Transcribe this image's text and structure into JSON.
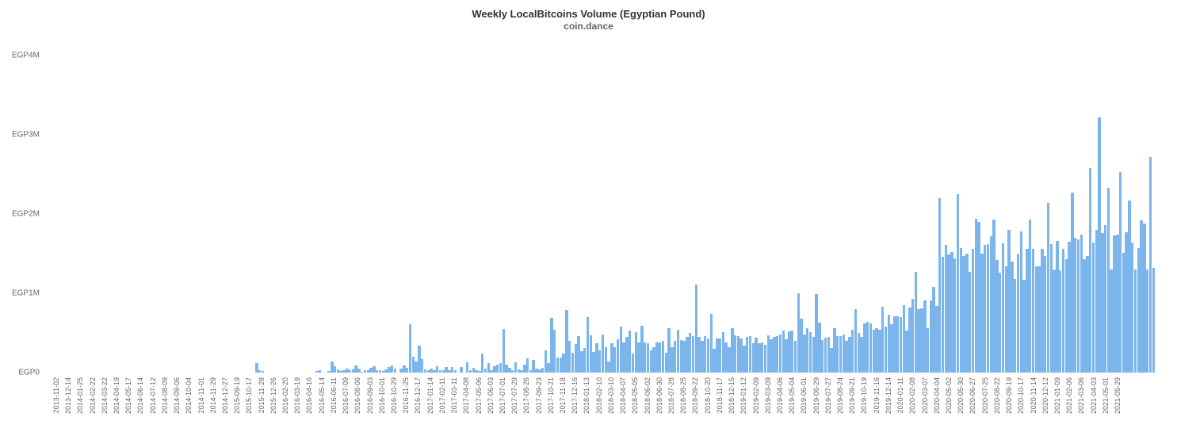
{
  "chart": {
    "type": "bar",
    "title": "Weekly LocalBitcoins Volume (Egyptian Pound)",
    "subtitle": "coin.dance",
    "title_fontsize": 13,
    "subtitle_fontsize": 12,
    "title_color": "#333333",
    "subtitle_color": "#666666",
    "background_color": "#ffffff",
    "bar_color": "#7CB5EC",
    "axis_label_color": "#666666",
    "axis_label_fontsize": 10,
    "x_tick_fontsize": 9,
    "ylim": [
      0,
      4200000
    ],
    "y_ticks": [
      {
        "value": 0,
        "label": "EGP0"
      },
      {
        "value": 1000000,
        "label": "EGP1M"
      },
      {
        "value": 2000000,
        "label": "EGP2M"
      },
      {
        "value": 3000000,
        "label": "EGP3M"
      },
      {
        "value": 4000000,
        "label": "EGP4M"
      }
    ],
    "x_tick_labels": [
      "2013-11-02",
      "2013-12-14",
      "2014-01-25",
      "2014-02-22",
      "2014-03-22",
      "2014-04-19",
      "2014-05-17",
      "2014-06-14",
      "2014-07-12",
      "2014-08-09",
      "2014-09-06",
      "2014-10-04",
      "2014-11-01",
      "2014-11-29",
      "2014-12-27",
      "2015-09-19",
      "2015-10-17",
      "2015-11-28",
      "2015-12-26",
      "2016-02-20",
      "2016-03-19",
      "2016-04-16",
      "2016-05-14",
      "2016-06-11",
      "2016-07-09",
      "2016-08-06",
      "2016-09-03",
      "2016-10-01",
      "2016-10-29",
      "2016-11-25",
      "2016-12-17",
      "2017-01-14",
      "2017-02-11",
      "2017-03-11",
      "2017-04-08",
      "2017-05-06",
      "2017-06-03",
      "2017-07-01",
      "2017-07-29",
      "2017-08-26",
      "2017-09-23",
      "2017-10-21",
      "2017-11-18",
      "2017-12-16",
      "2018-01-13",
      "2018-02-10",
      "2018-03-10",
      "2018-04-07",
      "2018-05-05",
      "2018-06-02",
      "2018-06-30",
      "2018-07-28",
      "2018-08-25",
      "2018-09-22",
      "2018-10-20",
      "2018-11-17",
      "2018-12-15",
      "2019-01-12",
      "2019-02-09",
      "2019-03-09",
      "2019-04-06",
      "2019-05-04",
      "2019-06-01",
      "2019-06-29",
      "2019-07-27",
      "2019-08-24",
      "2019-09-21",
      "2019-10-19",
      "2019-11-16",
      "2019-12-14",
      "2020-01-11",
      "2020-02-08",
      "2020-03-07",
      "2020-04-04",
      "2020-05-02",
      "2020-05-30",
      "2020-06-27",
      "2020-07-25",
      "2020-08-22",
      "2020-09-19",
      "2020-10-17",
      "2020-11-14",
      "2020-12-12",
      "2021-01-09",
      "2021-02-06",
      "2021-03-06",
      "2021-04-03",
      "2021-05-01",
      "2021-05-29"
    ],
    "x_tick_interval": 4,
    "values": [
      0,
      0,
      0,
      0,
      0,
      0,
      0,
      0,
      0,
      0,
      0,
      0,
      0,
      0,
      0,
      0,
      0,
      0,
      0,
      0,
      0,
      0,
      0,
      0,
      0,
      0,
      0,
      0,
      0,
      0,
      0,
      0,
      0,
      0,
      0,
      0,
      0,
      0,
      0,
      0,
      0,
      0,
      0,
      0,
      0,
      0,
      0,
      0,
      0,
      0,
      0,
      0,
      0,
      0,
      0,
      0,
      0,
      0,
      0,
      0,
      0,
      0,
      0,
      0,
      0,
      0,
      0,
      0,
      0,
      120000,
      35000,
      20000,
      0,
      0,
      0,
      0,
      0,
      0,
      0,
      0,
      0,
      0,
      0,
      0,
      0,
      0,
      0,
      0,
      0,
      20000,
      30000,
      0,
      0,
      20000,
      145000,
      80000,
      42000,
      22000,
      35000,
      48000,
      30000,
      40000,
      90000,
      50000,
      15000,
      30000,
      30000,
      60000,
      80000,
      32000,
      32000,
      18000,
      38000,
      70000,
      90000,
      50000,
      0,
      50000,
      90000,
      60000,
      615000,
      200000,
      140000,
      340000,
      170000,
      40000,
      30000,
      50000,
      35000,
      80000,
      35000,
      35000,
      75000,
      30000,
      70000,
      35000,
      0,
      70000,
      0,
      130000,
      35000,
      65000,
      30000,
      25000,
      245000,
      50000,
      120000,
      30000,
      85000,
      105000,
      120000,
      550000,
      105000,
      65000,
      30000,
      130000,
      45000,
      30000,
      105000,
      180000,
      30000,
      160000,
      50000,
      40000,
      65000,
      280000,
      120000,
      690000,
      540000,
      190000,
      195000,
      240000,
      790000,
      400000,
      250000,
      360000,
      460000,
      275000,
      310000,
      700000,
      475000,
      260000,
      375000,
      280000,
      480000,
      320000,
      145000,
      370000,
      325000,
      420000,
      580000,
      380000,
      450000,
      530000,
      240000,
      510000,
      380000,
      590000,
      380000,
      370000,
      280000,
      320000,
      380000,
      380000,
      400000,
      250000,
      560000,
      325000,
      400000,
      540000,
      415000,
      400000,
      455000,
      500000,
      460000,
      1110000,
      450000,
      400000,
      460000,
      430000,
      740000,
      300000,
      430000,
      430000,
      515000,
      380000,
      320000,
      560000,
      470000,
      460000,
      430000,
      340000,
      450000,
      460000,
      370000,
      440000,
      370000,
      380000,
      350000,
      470000,
      420000,
      450000,
      465000,
      480000,
      530000,
      425000,
      520000,
      530000,
      405000,
      1000000,
      680000,
      480000,
      560000,
      510000,
      450000,
      990000,
      635000,
      415000,
      445000,
      450000,
      315000,
      560000,
      460000,
      460000,
      480000,
      400000,
      455000,
      540000,
      800000,
      505000,
      450000,
      620000,
      640000,
      625000,
      540000,
      560000,
      540000,
      830000,
      580000,
      730000,
      610000,
      710000,
      710000,
      700000,
      850000,
      535000,
      820000,
      930000,
      1270000,
      800000,
      815000,
      915000,
      560000,
      910000,
      1080000,
      840000,
      2200000,
      1460000,
      1610000,
      1490000,
      1520000,
      1440000,
      2250000,
      1570000,
      1470000,
      1500000,
      1270000,
      1560000,
      1940000,
      1900000,
      1500000,
      1610000,
      1620000,
      1720000,
      1930000,
      1420000,
      1260000,
      1630000,
      1340000,
      1800000,
      1400000,
      1180000,
      1500000,
      1780000,
      1170000,
      1560000,
      1930000,
      1560000,
      1340000,
      1340000,
      1560000,
      1470000,
      2140000,
      1620000,
      1300000,
      1660000,
      1290000,
      1560000,
      1430000,
      1650000,
      2270000,
      1700000,
      1680000,
      1740000,
      1430000,
      1470000,
      2580000,
      1640000,
      1800000,
      3220000,
      1760000,
      1860000,
      2330000,
      1300000,
      1730000,
      1740000,
      2530000,
      1510000,
      1770000,
      2170000,
      1640000,
      1300000,
      1570000,
      1920000,
      1880000,
      1300000,
      2720000,
      1320000
    ]
  }
}
